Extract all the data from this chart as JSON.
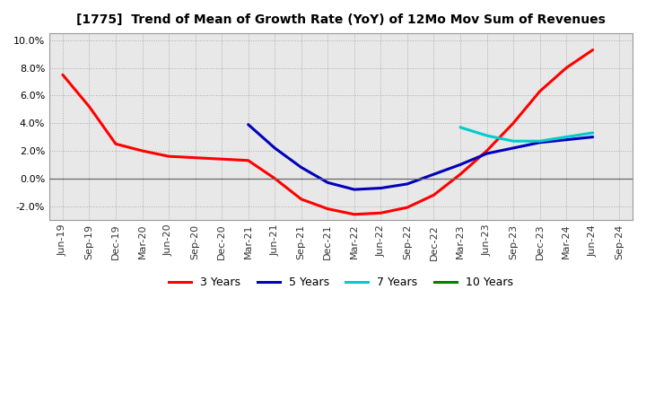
{
  "title": "[1775]  Trend of Mean of Growth Rate (YoY) of 12Mo Mov Sum of Revenues",
  "x_labels": [
    "Jun-19",
    "Sep-19",
    "Dec-19",
    "Mar-20",
    "Jun-20",
    "Sep-20",
    "Dec-20",
    "Mar-21",
    "Jun-21",
    "Sep-21",
    "Dec-21",
    "Mar-22",
    "Jun-22",
    "Sep-22",
    "Dec-22",
    "Mar-23",
    "Jun-23",
    "Sep-23",
    "Dec-23",
    "Mar-24",
    "Jun-24",
    "Sep-24"
  ],
  "ylim": [
    -0.03,
    0.105
  ],
  "yticks": [
    -0.02,
    0.0,
    0.02,
    0.04,
    0.06,
    0.08,
    0.1
  ],
  "series_3y": {
    "color": "#FF0000",
    "x_indices": [
      0,
      1,
      2,
      3,
      4,
      5,
      6,
      7,
      8,
      9,
      10,
      11,
      12,
      13,
      14,
      15,
      16,
      17,
      18,
      19,
      20
    ],
    "values": [
      0.075,
      0.052,
      0.025,
      0.02,
      0.016,
      0.015,
      0.014,
      0.013,
      0.0,
      -0.015,
      -0.022,
      -0.026,
      -0.025,
      -0.021,
      -0.012,
      0.003,
      0.02,
      0.04,
      0.063,
      0.08,
      0.093
    ]
  },
  "series_5y": {
    "color": "#0000BB",
    "x_indices": [
      7,
      8,
      9,
      10,
      11,
      12,
      13,
      14,
      15,
      16,
      17,
      18,
      19,
      20
    ],
    "values": [
      0.039,
      0.022,
      0.008,
      -0.003,
      -0.008,
      -0.007,
      -0.004,
      0.003,
      0.01,
      0.018,
      0.022,
      0.026,
      0.028,
      0.03
    ]
  },
  "series_7y": {
    "color": "#00CCCC",
    "x_indices": [
      15,
      16,
      17,
      18,
      19,
      20
    ],
    "values": [
      0.037,
      0.031,
      0.027,
      0.027,
      0.03,
      0.033
    ]
  },
  "series_10y": {
    "color": "#008000",
    "x_indices": [],
    "values": []
  },
  "legend_labels": [
    "3 Years",
    "5 Years",
    "7 Years",
    "10 Years"
  ],
  "legend_colors": [
    "#FF0000",
    "#0000BB",
    "#00CCCC",
    "#008000"
  ],
  "plot_bg": "#E8E8E8",
  "fig_bg": "#FFFFFF",
  "grid_color": "#AAAAAA",
  "zero_line_color": "#666666"
}
